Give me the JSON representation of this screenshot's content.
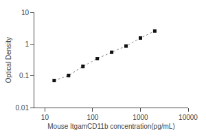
{
  "chart_data": {
    "type": "line",
    "xlabel": "Mouse ItgamCD11b concentration(pg/mL)",
    "ylabel": "Optical Density",
    "x": [
      15.625,
      31.25,
      62.5,
      125,
      250,
      500,
      1000,
      2000
    ],
    "values": [
      0.071,
      0.102,
      0.198,
      0.348,
      0.552,
      0.868,
      1.55,
      2.58
    ],
    "xlim": [
      6,
      10000
    ],
    "ylim": [
      0.01,
      10
    ],
    "xticks": [
      10,
      100,
      1000,
      10000
    ],
    "yticks": [
      0.01,
      0.1,
      1,
      10
    ],
    "log": true,
    "grid": false,
    "color": "#888888",
    "colors": [
      "#111111",
      "#111111",
      "#111111",
      "#111111",
      "#111111",
      "#111111",
      "#111111",
      "#111111"
    ],
    "marker": "square",
    "line_style": "dotted"
  }
}
